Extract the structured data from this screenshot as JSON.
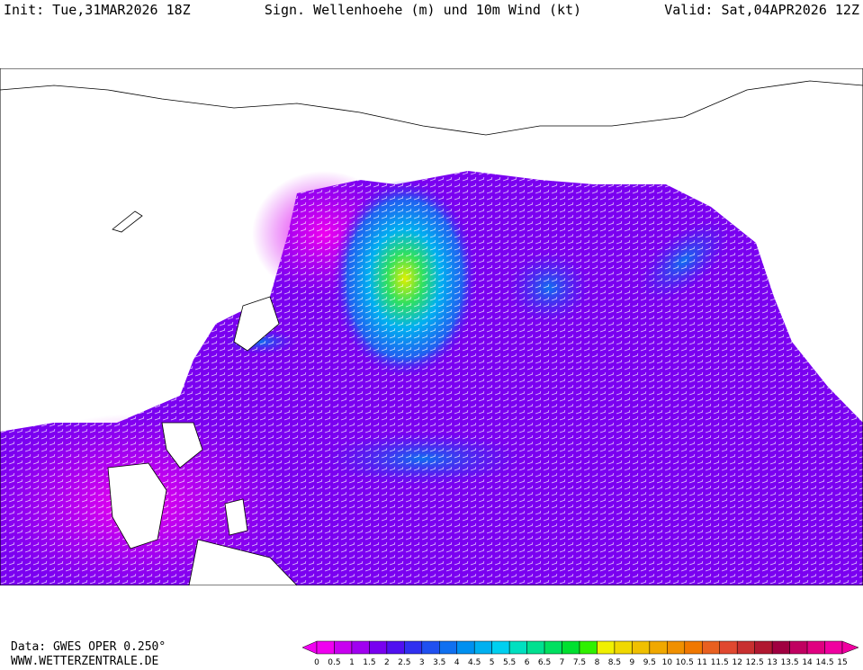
{
  "header": {
    "init": "Init: Tue,31MAR2026 18Z",
    "title": "Sign. Wellenhoehe (m) und 10m Wind (kt)",
    "valid": "Valid: Sat,04APR2026 12Z"
  },
  "footer": {
    "data": "Data: GWES OPER 0.250°",
    "site": "WWW.WETTERZENTRALE.DE"
  },
  "scale": {
    "labels": [
      "0",
      "0.5",
      "1",
      "1.5",
      "2",
      "2.5",
      "3",
      "3.5",
      "4",
      "4.5",
      "5",
      "5.5",
      "6",
      "6.5",
      "7",
      "7.5",
      "8",
      "8.5",
      "9",
      "9.5",
      "10",
      "10.5",
      "11",
      "11.5",
      "12",
      "12.5",
      "13",
      "13.5",
      "14",
      "14.5",
      "15"
    ],
    "colors": [
      "#f000f0",
      "#c800f0",
      "#a000f0",
      "#7800f0",
      "#5010f0",
      "#3030f0",
      "#2050f0",
      "#1070f0",
      "#0090f0",
      "#00b0f0",
      "#00d0f0",
      "#00e0c0",
      "#00e090",
      "#00e060",
      "#00e030",
      "#30f000",
      "#f0f000",
      "#f0d800",
      "#f0c000",
      "#f0a800",
      "#f09000",
      "#f07800",
      "#e86020",
      "#e04830",
      "#c83030",
      "#b01830",
      "#a00040",
      "#c00060",
      "#e00080",
      "#f000a0"
    ]
  }
}
